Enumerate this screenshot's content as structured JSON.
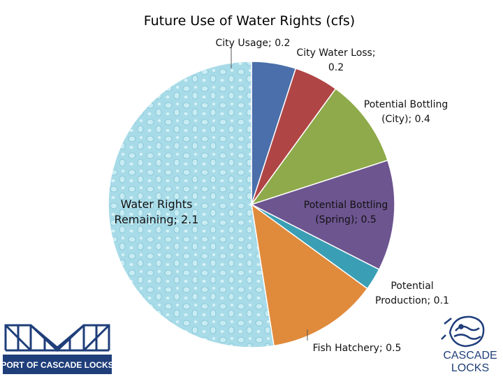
{
  "chart_data": {
    "type": "pie",
    "title": "Future Use of Water Rights (cfs)",
    "slices": [
      {
        "label": "City Usage",
        "value": 0.2,
        "display": "City Usage; 0.2",
        "color": "#4a6faa"
      },
      {
        "label": "City Water Loss",
        "value": 0.2,
        "display_lines": [
          "City Water  Loss;",
          "0.2"
        ],
        "color": "#b04545"
      },
      {
        "label": "Potential Bottling (City)",
        "value": 0.4,
        "display_lines": [
          "Potential Bottling",
          "(City); 0.4"
        ],
        "color": "#8eaa4a"
      },
      {
        "label": "Potential Bottling (Spring)",
        "value": 0.5,
        "display_lines": [
          "Potential Bottling",
          "(Spring); 0.5"
        ],
        "color": "#6d5590"
      },
      {
        "label": "Potential Production",
        "value": 0.1,
        "display_lines": [
          "Potential",
          "Production; 0.1"
        ],
        "color": "#3a9fb5"
      },
      {
        "label": "Fish Hatchery",
        "value": 0.5,
        "display": "Fish Hatchery; 0.5",
        "color": "#e08a3c"
      },
      {
        "label": "Water Rights Remaining",
        "value": 2.1,
        "display_lines": [
          "Water Rights",
          "Remaining; 2.1"
        ],
        "color": "#a8dbe8"
      }
    ],
    "legend": "none"
  },
  "logos": {
    "left_text": "PORT OF CASCADE LOCKS",
    "right_text_lines": [
      "CASCADE",
      "LOCKS"
    ],
    "navy": "#1f3e7a"
  }
}
